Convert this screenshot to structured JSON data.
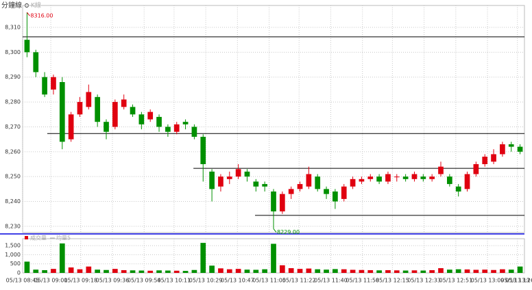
{
  "chart_data": [
    {
      "type": "candlestick",
      "title": "分鐘線",
      "legend": "K線",
      "up_color": "#e00010",
      "down_color": "#009000",
      "x": [
        "05/13 08:45",
        "05/13 08:50",
        "05/13 08:55",
        "05/13 09:00",
        "05/13 09:05",
        "05/13 09:10",
        "05/13 09:15",
        "05/13 09:20",
        "05/13 09:25",
        "05/13 09:30",
        "05/13 09:35",
        "05/13 09:40",
        "05/13 09:45",
        "05/13 09:50",
        "05/13 09:55",
        "05/13 10:00",
        "05/13 10:05",
        "05/13 10:10",
        "05/13 10:15",
        "05/13 10:20",
        "05/13 10:25",
        "05/13 10:30",
        "05/13 10:35",
        "05/13 10:40",
        "05/13 10:45",
        "05/13 10:50",
        "05/13 10:55",
        "05/13 11:00",
        "05/13 11:05",
        "05/13 11:10",
        "05/13 11:15",
        "05/13 11:20",
        "05/13 11:25",
        "05/13 11:30",
        "05/13 11:35",
        "05/13 11:40",
        "05/13 11:45",
        "05/13 11:50",
        "05/13 11:55",
        "05/13 12:00",
        "05/13 12:05",
        "05/13 12:10",
        "05/13 12:15",
        "05/13 12:20",
        "05/13 12:25",
        "05/13 12:30",
        "05/13 12:35",
        "05/13 12:40",
        "05/13 12:45",
        "05/13 12:50",
        "05/13 12:55",
        "05/13 13:00",
        "05/13 13:05",
        "05/13 13:10",
        "05/13 13:15",
        "05/13 13:20",
        "05/13 13:25"
      ],
      "open": [
        8305,
        8300,
        8290,
        8285,
        8288,
        8265,
        8275,
        8278,
        8282,
        8272,
        8270,
        8278,
        8278,
        8275,
        8273,
        8274,
        8270,
        8268,
        8272,
        8270,
        8266,
        8252,
        8246,
        8249,
        8250,
        8252,
        8248,
        8247,
        8244,
        8236,
        8243,
        8245,
        8246,
        8250,
        8245,
        8244,
        8241,
        8246,
        8248,
        8249,
        8250,
        8248,
        8250,
        8250,
        8249,
        8250,
        8249,
        8251,
        8250,
        8246,
        8245,
        8251,
        8255,
        8256,
        8259,
        8263,
        8262
      ],
      "high": [
        8316,
        8301,
        8292,
        8291,
        8290,
        8276,
        8282,
        8287,
        8283,
        8273,
        8281,
        8283,
        8279,
        8276,
        8277,
        8275,
        8271,
        8272,
        8273,
        8271,
        8267,
        8253,
        8251,
        8252,
        8255,
        8253,
        8249,
        8248,
        8245,
        8244,
        8246,
        8248,
        8254,
        8251,
        8246,
        8245,
        8247,
        8250,
        8250,
        8251,
        8251,
        8252,
        8251,
        8251,
        8252,
        8251,
        8251,
        8256,
        8251,
        8247,
        8252,
        8256,
        8259,
        8261,
        8264,
        8264,
        8263
      ],
      "low": [
        8298,
        8290,
        8282,
        8283,
        8261,
        8264,
        8274,
        8277,
        8270,
        8265,
        8269,
        8277,
        8274,
        8269,
        8272,
        8268,
        8266,
        8267,
        8269,
        8265,
        8248,
        8240,
        8244,
        8247,
        8249,
        8248,
        8244,
        8244,
        8229,
        8235,
        8241,
        8244,
        8245,
        8244,
        8241,
        8237,
        8240,
        8245,
        8247,
        8248,
        8247,
        8247,
        8248,
        8248,
        8248,
        8248,
        8248,
        8250,
        8246,
        8242,
        8244,
        8250,
        8254,
        8255,
        8258,
        8260,
        8259
      ],
      "close": [
        8300,
        8292,
        8283,
        8290,
        8264,
        8275,
        8280,
        8284,
        8272,
        8268,
        8280,
        8281,
        8275,
        8271,
        8276,
        8270,
        8268,
        8271,
        8271,
        8266,
        8255,
        8245,
        8250,
        8250,
        8253,
        8250,
        8246,
        8246,
        8236,
        8243,
        8245,
        8247,
        8251,
        8245,
        8243,
        8240,
        8246,
        8249,
        8249,
        8250,
        8248,
        8251,
        8250,
        8249,
        8251,
        8249,
        8250,
        8254,
        8247,
        8244,
        8251,
        8255,
        8258,
        8259,
        8263,
        8262,
        8260
      ],
      "xlim": [
        "05/13 08:45",
        "05/13 13:30"
      ],
      "xticks": [
        "05/13 08:45",
        "05/13 09:01",
        "05/13 09:18",
        "05/13 09:36",
        "05/13 09:54",
        "05/13 10:11",
        "05/13 10:29",
        "05/13 10:47",
        "05/13 11:05",
        "05/13 11:22",
        "05/13 11:40",
        "05/13 11:58",
        "05/13 12:15",
        "05/13 12:33",
        "05/13 12:51",
        "05/13 13:09",
        "05/13 13:26",
        {
          "value": "05/13 13:44",
          "label": "05/13 13"
        }
      ],
      "ylim": [
        8227.5,
        8318.8
      ],
      "yticks": [
        {
          "value": 8230,
          "label": "8,230"
        },
        {
          "value": 8240,
          "label": "8,240"
        },
        {
          "value": 8250,
          "label": "8,250"
        },
        {
          "value": 8260,
          "label": "8,260"
        },
        {
          "value": 8270,
          "label": "8,270"
        },
        {
          "value": 8280,
          "label": "8,280"
        },
        {
          "value": 8290,
          "label": "8,290"
        },
        {
          "value": 8300,
          "label": "8,300"
        },
        {
          "value": 8310,
          "label": "8,310"
        }
      ],
      "grid": true,
      "hlines": [
        {
          "value": 8306.2,
          "from": "05/13 08:45"
        },
        {
          "value": 8267.3,
          "from": "05/13 08:59"
        },
        {
          "value": 8253.3,
          "from": "05/13 10:22"
        },
        {
          "value": 8234.4,
          "from": "05/13 10:57"
        }
      ],
      "annotations": [
        {
          "text": "8316.00",
          "x": "05/13 08:45",
          "y": 8316
        },
        {
          "text": "8229.00",
          "x": "05/13 11:05",
          "y": 8229
        }
      ]
    },
    {
      "type": "bar",
      "legend": [
        "成交量",
        "均量5"
      ],
      "color": "#e00010",
      "values": [
        620,
        180,
        150,
        220,
        1620,
        300,
        200,
        350,
        180,
        160,
        220,
        150,
        140,
        130,
        120,
        140,
        130,
        120,
        110,
        160,
        1650,
        400,
        250,
        200,
        220,
        180,
        170,
        200,
        1600,
        420,
        260,
        220,
        240,
        200,
        180,
        210,
        200,
        170,
        160,
        150,
        140,
        150,
        140,
        130,
        140,
        130,
        150,
        260,
        180,
        200,
        190,
        170,
        180,
        160,
        200,
        180,
        350
      ],
      "ylim": [
        0,
        1880
      ],
      "yticks": [
        0,
        500,
        {
          "value": 1000,
          "label": "1,000"
        },
        {
          "value": 1500,
          "label": "1,500"
        }
      ]
    }
  ]
}
